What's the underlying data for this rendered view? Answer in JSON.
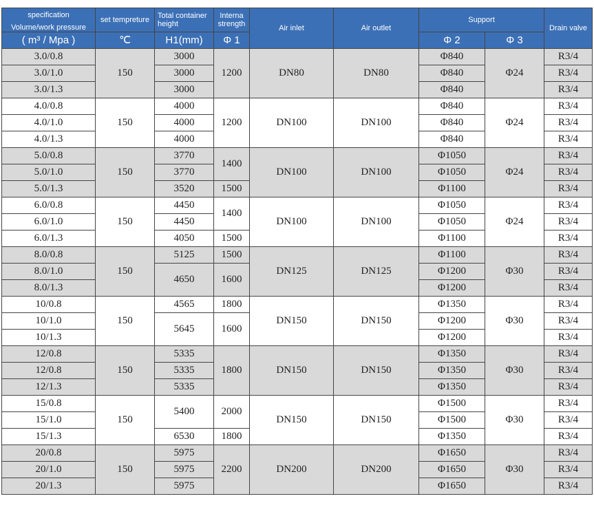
{
  "header": {
    "specification": "specification",
    "volume_pressure": "Volume/work pressure",
    "volume_pressure_unit": "( m³ / Mpa )",
    "set_temperature": "set tempreture",
    "temperature_unit": "℃",
    "total_height": "Total container height",
    "height_unit": "H1(mm)",
    "internal_strength": "Interna strength",
    "strength_unit": "Φ 1",
    "air_inlet": "Air inlet",
    "air_outlet": "Air outlet",
    "support": "Support",
    "support_phi2": "Φ 2",
    "support_phi3": "Φ 3",
    "drain_valve": "Drain valve"
  },
  "groups": [
    {
      "temp": "150",
      "inlet": "DN80",
      "outlet": "DN80",
      "phi3": "Φ24",
      "rows": [
        {
          "spec": "3.0/0.8",
          "height": "3000",
          "phi2": "Φ840",
          "drain": "R3/4"
        },
        {
          "spec": "3.0/1.0",
          "height": "3000",
          "phi2": "Φ840",
          "drain": "R3/4"
        },
        {
          "spec": "3.0/1.3",
          "height": "3000",
          "phi2": "Φ840",
          "drain": "R3/4"
        }
      ],
      "strength": [
        "1200"
      ]
    },
    {
      "temp": "150",
      "inlet": "DN100",
      "outlet": "DN100",
      "phi3": "Φ24",
      "rows": [
        {
          "spec": "4.0/0.8",
          "height": "4000",
          "phi2": "Φ840",
          "drain": "R3/4"
        },
        {
          "spec": "4.0/1.0",
          "height": "4000",
          "phi2": "Φ840",
          "drain": "R3/4"
        },
        {
          "spec": "4.0/1.3",
          "height": "4000",
          "phi2": "Φ840",
          "drain": "R3/4"
        }
      ],
      "strength": [
        "1200"
      ]
    },
    {
      "temp": "150",
      "inlet": "DN100",
      "outlet": "DN100",
      "phi3": "Φ24",
      "rows": [
        {
          "spec": "5.0/0.8",
          "height": "3770",
          "phi2": "Φ1050",
          "drain": "R3/4"
        },
        {
          "spec": "5.0/1.0",
          "height": "3770",
          "phi2": "Φ1050",
          "drain": "R3/4"
        },
        {
          "spec": "5.0/1.3",
          "height": "3520",
          "phi2": "Φ1100",
          "drain": "R3/4"
        }
      ],
      "strength": [
        "1400",
        "1500"
      ]
    },
    {
      "temp": "150",
      "inlet": "DN100",
      "outlet": "DN100",
      "phi3": "Φ24",
      "rows": [
        {
          "spec": "6.0/0.8",
          "height": "4450",
          "phi2": "Φ1050",
          "drain": "R3/4"
        },
        {
          "spec": "6.0/1.0",
          "height": "4450",
          "phi2": "Φ1050",
          "drain": "R3/4"
        },
        {
          "spec": "6.0/1.3",
          "height": "4050",
          "phi2": "Φ1100",
          "drain": "R3/4"
        }
      ],
      "strength": [
        "1400",
        "1500"
      ]
    },
    {
      "temp": "150",
      "inlet": "DN125",
      "outlet": "DN125",
      "phi3": "Φ30",
      "rows": [
        {
          "spec": "8.0/0.8",
          "height": "5125",
          "phi2": "Φ1100",
          "drain": "R3/4"
        },
        {
          "spec": "8.0/1.0",
          "height": "4650",
          "phi2": "Φ1200",
          "drain": "R3/4"
        },
        {
          "spec": "8.0/1.3",
          "height": "",
          "phi2": "Φ1200",
          "drain": "R3/4"
        }
      ],
      "strength": [
        "1500",
        "1600"
      ]
    },
    {
      "temp": "150",
      "inlet": "DN150",
      "outlet": "DN150",
      "phi3": "Φ30",
      "rows": [
        {
          "spec": "10/0.8",
          "height": "4565",
          "phi2": "Φ1350",
          "drain": "R3/4"
        },
        {
          "spec": "10/1.0",
          "height": "5645",
          "phi2": "Φ1200",
          "drain": "R3/4"
        },
        {
          "spec": "10/1.3",
          "height": "",
          "phi2": "Φ1200",
          "drain": "R3/4"
        }
      ],
      "strength": [
        "1800",
        "1600"
      ]
    },
    {
      "temp": "150",
      "inlet": "DN150",
      "outlet": "DN150",
      "phi3": "Φ30",
      "rows": [
        {
          "spec": "12/0.8",
          "height": "5335",
          "phi2": "Φ1350",
          "drain": "R3/4"
        },
        {
          "spec": "12/0.8",
          "height": "5335",
          "phi2": "Φ1350",
          "drain": "R3/4"
        },
        {
          "spec": "12/1.3",
          "height": "5335",
          "phi2": "Φ1350",
          "drain": "R3/4"
        }
      ],
      "strength": [
        "1800"
      ]
    },
    {
      "temp": "150",
      "inlet": "DN150",
      "outlet": "DN150",
      "phi3": "Φ30",
      "rows": [
        {
          "spec": "15/0.8",
          "height": "5400",
          "phi2": "Φ1500",
          "drain": "R3/4"
        },
        {
          "spec": "15/1.0",
          "height": "",
          "phi2": "Φ1500",
          "drain": "R3/4"
        },
        {
          "spec": "15/1.3",
          "height": "6530",
          "phi2": "Φ1350",
          "drain": "R3/4"
        }
      ],
      "strength": [
        "2000",
        "1800"
      ]
    },
    {
      "temp": "150",
      "inlet": "DN200",
      "outlet": "DN200",
      "phi3": "Φ30",
      "rows": [
        {
          "spec": "20/0.8",
          "height": "5975",
          "phi2": "Φ1650",
          "drain": "R3/4"
        },
        {
          "spec": "20/1.0",
          "height": "5975",
          "phi2": "Φ1650",
          "drain": "R3/4"
        },
        {
          "spec": "20/1.3",
          "height": "5975",
          "phi2": "Φ1650",
          "drain": "R3/4"
        }
      ],
      "strength": [
        "2200"
      ]
    }
  ]
}
